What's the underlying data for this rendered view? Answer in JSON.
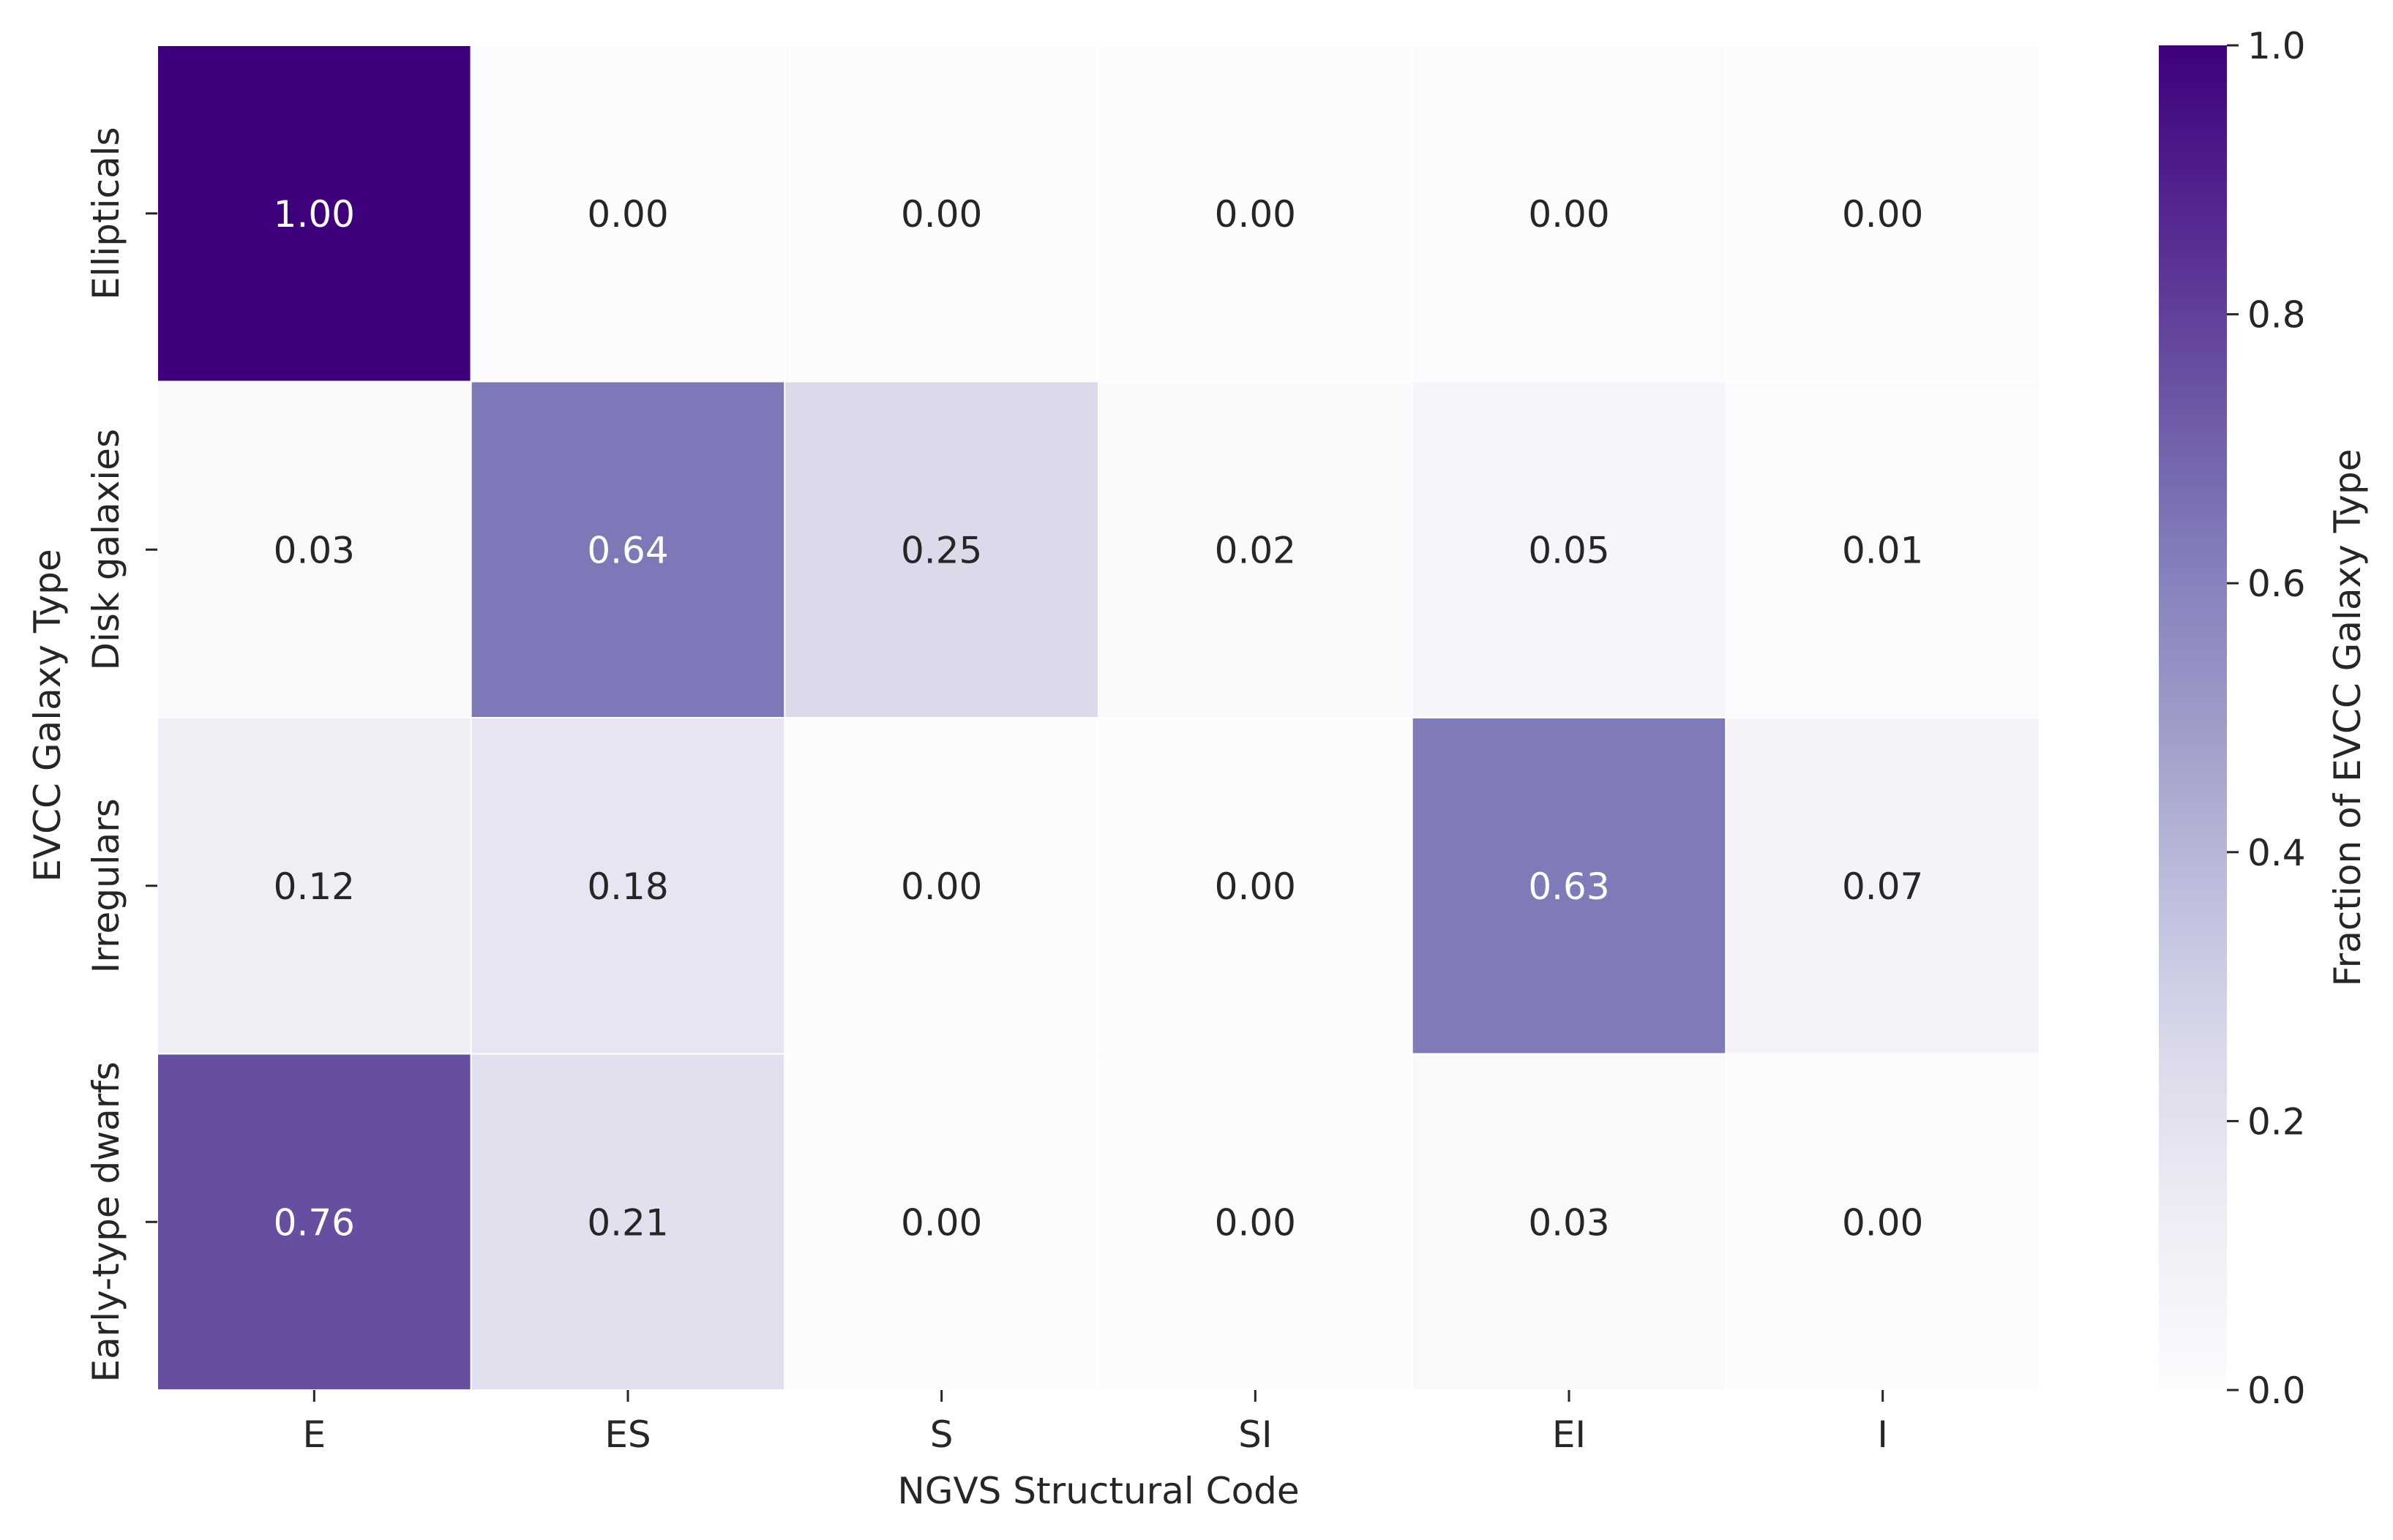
{
  "chart_data": {
    "type": "heatmap",
    "title": "",
    "xlabel": "NGVS Structural Code",
    "ylabel": "EVCC Galaxy Type",
    "x_categories": [
      "E",
      "ES",
      "S",
      "SI",
      "EI",
      "I"
    ],
    "y_categories": [
      "Ellipticals",
      "Disk galaxies",
      "Irregulars",
      "Early-type dwarfs"
    ],
    "values": [
      [
        1.0,
        0.0,
        0.0,
        0.0,
        0.0,
        0.0
      ],
      [
        0.03,
        0.64,
        0.25,
        0.02,
        0.05,
        0.01
      ],
      [
        0.12,
        0.18,
        0.0,
        0.0,
        0.63,
        0.07
      ],
      [
        0.76,
        0.21,
        0.0,
        0.0,
        0.03,
        0.0
      ]
    ],
    "value_format": "2 decimals",
    "colormap": "Purples",
    "colorbar": {
      "label": "Fraction of EVCC Galaxy Type",
      "range": [
        0.0,
        1.0
      ],
      "ticks": [
        0.0,
        0.2,
        0.4,
        0.6,
        0.8,
        1.0
      ],
      "tick_labels": [
        "0.0",
        "0.2",
        "0.4",
        "0.6",
        "0.8",
        "1.0"
      ]
    },
    "colors": {
      "low": "#fcfbfd",
      "high": "#3f007d",
      "text_dark": "#262626",
      "text_light": "#ffffff",
      "grid_lines": "#ffffff"
    }
  }
}
